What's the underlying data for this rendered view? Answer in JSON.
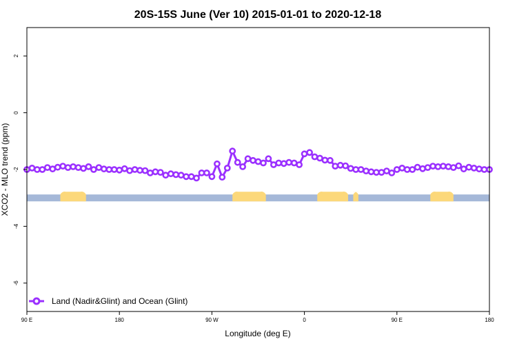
{
  "chart_data": {
    "type": "line",
    "title": "20S-15S June (Ver 10)   2015-01-01 to 2020-12-18",
    "xlabel": "Longitude (deg E)",
    "ylabel": "XCO2 - MLO trend (ppm)",
    "xlim": [
      0,
      90
    ],
    "ylim": [
      -7,
      3
    ],
    "x_ticks": [
      0,
      18,
      36,
      54,
      72,
      90
    ],
    "x_tick_labels": [
      "90 E",
      "180",
      "90 W",
      "0",
      "90 E",
      "180"
    ],
    "y_ticks": [
      2,
      0,
      -2,
      -4,
      -6
    ],
    "y_tick_labels": [
      "2",
      "0",
      "-2",
      "-4",
      "-6"
    ],
    "grid": false,
    "legend_position": "bottom-left",
    "series": [
      {
        "name": "Land (Nadir&Glint) and Ocean (Glint)",
        "color": "#9b30ff",
        "x": [
          0,
          1,
          2,
          3,
          4,
          5,
          6,
          7,
          8,
          9,
          10,
          11,
          12,
          13,
          14,
          15,
          16,
          17,
          18,
          19,
          20,
          21,
          22,
          23,
          24,
          25,
          26,
          27,
          28,
          29,
          30,
          31,
          32,
          33,
          34,
          35,
          36,
          37,
          38,
          39,
          40,
          41,
          42,
          43,
          44,
          45,
          46,
          47,
          48,
          49,
          50,
          51,
          52,
          53,
          54,
          55,
          56,
          57,
          58,
          59,
          60,
          61,
          62,
          63,
          64,
          65,
          66,
          67,
          68,
          69,
          70,
          71,
          72,
          73,
          74,
          75,
          76,
          77,
          78,
          79,
          80,
          81,
          82,
          83,
          84,
          85,
          86,
          87,
          88,
          89,
          90
        ],
        "values": [
          -2.0,
          -1.95,
          -2.0,
          -2.0,
          -1.93,
          -1.98,
          -1.92,
          -1.88,
          -1.93,
          -1.9,
          -1.93,
          -1.96,
          -1.9,
          -2.0,
          -1.93,
          -1.98,
          -2.0,
          -2.0,
          -2.02,
          -1.97,
          -2.04,
          -2.0,
          -2.03,
          -2.04,
          -2.12,
          -2.08,
          -2.1,
          -2.2,
          -2.15,
          -2.18,
          -2.2,
          -2.25,
          -2.25,
          -2.3,
          -2.12,
          -2.12,
          -2.25,
          -1.8,
          -2.27,
          -1.95,
          -1.35,
          -1.75,
          -1.9,
          -1.62,
          -1.68,
          -1.72,
          -1.77,
          -1.62,
          -1.83,
          -1.77,
          -1.79,
          -1.75,
          -1.77,
          -1.83,
          -1.45,
          -1.4,
          -1.55,
          -1.6,
          -1.67,
          -1.68,
          -1.88,
          -1.85,
          -1.87,
          -1.96,
          -2.0,
          -2.0,
          -2.05,
          -2.08,
          -2.1,
          -2.1,
          -2.05,
          -2.12,
          -2.0,
          -1.95,
          -2.0,
          -2.0,
          -1.92,
          -1.97,
          -1.93,
          -1.88,
          -1.9,
          -1.88,
          -1.9,
          -1.93,
          -1.87,
          -1.98,
          -1.92,
          -1.95,
          -1.98,
          -2.0,
          -2.0
        ]
      }
    ],
    "surface_band": {
      "y": -3.0,
      "ocean_color": "#a5b8d8",
      "land_color": "#fcd87a",
      "land_x_ranges": [
        [
          6.5,
          11.5
        ],
        [
          40.0,
          46.5
        ],
        [
          56.5,
          62.5
        ],
        [
          63.5,
          64.5
        ],
        [
          78.5,
          83.0
        ]
      ]
    }
  }
}
